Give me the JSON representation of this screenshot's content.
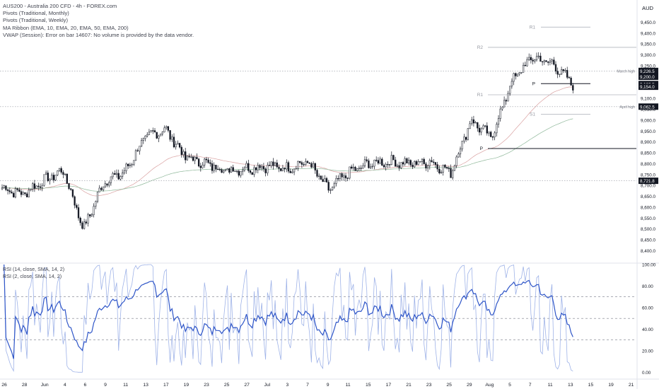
{
  "header": {
    "title": "AUS200 - Australia 200 CFD - 4h - FOREX.com",
    "indicators": [
      "Pivots (Traditional, Monthly)",
      "Pivots (Traditional, Weekly)",
      "MA Ribbon (EMA, 10, EMA, 20, EMA, 50, EMA, 200)",
      "VWAP (Session): Error on bar 14607: No volume is provided by the data vendor."
    ],
    "currency": "AUD"
  },
  "colors": {
    "up": "#131722",
    "down": "#131722",
    "ema20": "#d9a0a0",
    "ema50": "#8fb89a",
    "rsi14": "#2f56c8",
    "rsi2": "#9fb3e8",
    "grid": "#9598a1",
    "label_bg": "#131722",
    "hline": "#b2b5be"
  },
  "chart_data": [
    {
      "type": "candlestick",
      "title": "AUS200 - Australia 200 CFD - 4h - FOREX.com",
      "ylabel": "AUD",
      "ylim": [
        8400,
        9500
      ],
      "y_ticks": [
        "8,400.0",
        "8,450.0",
        "8,500.0",
        "8,550.0",
        "8,600.0",
        "8,650.0",
        "8,700.0",
        "8,750.0",
        "8,800.0",
        "8,850.0",
        "8,900.0",
        "8,950.0",
        "9,000.0",
        "9,050.0",
        "9,100.0",
        "9,150.0",
        "9,200.0",
        "9,250.0",
        "9,300.0",
        "9,350.0",
        "9,400.0",
        "9,450.0"
      ],
      "x_ticks": [
        "26",
        "28",
        "Jun",
        "4",
        "6",
        "9",
        "11",
        "13",
        "17",
        "19",
        "23",
        "25",
        "27",
        "Jul",
        "3",
        "7",
        "9",
        "11",
        "15",
        "17",
        "21",
        "23",
        "25",
        "29",
        "Aug",
        "5",
        "7",
        "11",
        "13",
        "15",
        "19",
        "21"
      ],
      "path": [
        [
          "26",
          8690
        ],
        [
          "28",
          8660
        ],
        [
          "Jun",
          8720
        ],
        [
          "4",
          8770
        ],
        [
          "6",
          8500
        ],
        [
          "9",
          8720
        ],
        [
          "11",
          8760
        ],
        [
          "13",
          8920
        ],
        [
          "17",
          8960
        ],
        [
          "19",
          8830
        ],
        [
          "23",
          8800
        ],
        [
          "25",
          8770
        ],
        [
          "27",
          8780
        ],
        [
          "Jul",
          8790
        ],
        [
          "3",
          8780
        ],
        [
          "7",
          8810
        ],
        [
          "9",
          8680
        ],
        [
          "11",
          8760
        ],
        [
          "15",
          8800
        ],
        [
          "17",
          8810
        ],
        [
          "21",
          8800
        ],
        [
          "23",
          8810
        ],
        [
          "25",
          8760
        ],
        [
          "29",
          9000
        ],
        [
          "Aug",
          8920
        ],
        [
          "5",
          9180
        ],
        [
          "7",
          9290
        ],
        [
          "11",
          9260
        ],
        [
          "13",
          9165
        ]
      ],
      "price_lines": [
        {
          "label": "March high",
          "value": 9226.5
        },
        {
          "label": "April high",
          "value": 9062.5
        },
        {
          "label": "",
          "value": 8721.8
        }
      ],
      "price_labels": [
        {
          "value": 9226.5,
          "text": "9,226.5"
        },
        {
          "value": 9200.0,
          "text": "9,200.0"
        },
        {
          "value": 9166.5,
          "text": "9,166.5"
        },
        {
          "value": 9154.0,
          "text": "9,154.0"
        },
        {
          "value": 9062.5,
          "text": "9,062.5"
        },
        {
          "value": 8721.8,
          "text": "8,721.8"
        }
      ],
      "pivots_monthly": [
        {
          "label": "R2",
          "value": 9335
        },
        {
          "label": "R1",
          "value": 9117
        },
        {
          "label": "P",
          "value": 8870
        }
      ],
      "pivots_weekly": [
        {
          "label": "R1",
          "value": 9428
        },
        {
          "label": "P",
          "value": 9168
        },
        {
          "label": "S1",
          "value": 9027
        }
      ]
    },
    {
      "type": "line",
      "title": "RSI (14, close, SMA, 14, 2)",
      "series": [
        {
          "name": "RSI (14, close, SMA, 14, 2)"
        },
        {
          "name": "RSI (2, close, SMA, 14, 2)"
        }
      ],
      "ylim": [
        0,
        100
      ],
      "y_ticks": [
        "100.00",
        "80.00",
        "60.00",
        "40.00",
        "20.00",
        "0.00"
      ],
      "bands": [
        70,
        50,
        30
      ]
    }
  ]
}
